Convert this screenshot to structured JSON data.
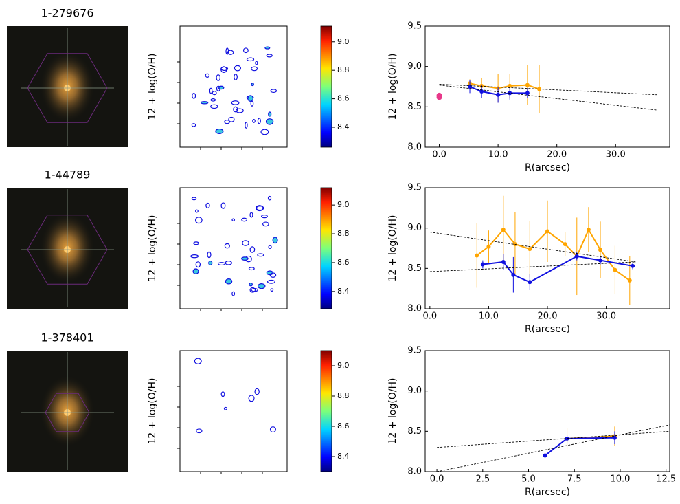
{
  "chart_data": [
    {
      "type": "map",
      "title": "1-279676",
      "ylabel": "12 + log(O/H)",
      "clim": [
        8.26,
        9.11
      ],
      "cticks": [
        8.4,
        8.6,
        8.8,
        {
          "value": 9,
          "label": "9.0"
        }
      ]
    },
    {
      "type": "line",
      "xlabel": "R(arcsec)",
      "ylabel": "12 + log(O/H)",
      "xlim": [
        -2.4,
        39.2
      ],
      "ylim": [
        8.0,
        9.5
      ],
      "xticks": [
        {
          "value": 0,
          "label": "0.0"
        },
        {
          "value": 10,
          "label": "10.0"
        },
        {
          "value": 20,
          "label": "20.0"
        },
        {
          "value": 30,
          "label": "30.0"
        }
      ],
      "yticks": [
        {
          "value": 8,
          "label": "8.0"
        },
        8.5,
        {
          "value": 9,
          "label": "9.0"
        },
        9.5
      ],
      "series": [
        {
          "color": "#ffa500",
          "x": [
            5.2,
            7.2,
            10,
            12,
            15,
            17
          ],
          "values": [
            8.79,
            8.76,
            8.73,
            8.76,
            8.77,
            8.72
          ],
          "errors": [
            0.05,
            0.1,
            0.18,
            0.15,
            0.25,
            0.3
          ]
        },
        {
          "color": "#1010e0",
          "x": [
            5.2,
            7.2,
            10,
            12,
            15
          ],
          "values": [
            8.75,
            8.69,
            8.65,
            8.67,
            8.67
          ],
          "errors": [
            0.08,
            0.08,
            0.1,
            0.08,
            0.06
          ]
        },
        {
          "color": "#e8388a",
          "x": [
            0,
            0
          ],
          "values": [
            8.64,
            8.62
          ],
          "line": false
        },
        {
          "color": "#000000",
          "x": [
            0,
            37
          ],
          "values": [
            8.78,
            8.65
          ],
          "dash": true
        },
        {
          "color": "#000000",
          "x": [
            0,
            37
          ],
          "values": [
            8.77,
            8.46
          ],
          "dash": true
        }
      ]
    },
    {
      "type": "map",
      "title": "1-44789",
      "ylabel": "12 + log(O/H)",
      "clim": [
        8.28,
        9.12
      ],
      "cticks": [
        8.4,
        8.6,
        8.8,
        {
          "value": 9,
          "label": "9.0"
        }
      ]
    },
    {
      "type": "line",
      "xlabel": "R(arcsec)",
      "ylabel": "12 + log(O/H)",
      "xlim": [
        -0.8,
        40.8
      ],
      "ylim": [
        8.0,
        9.5
      ],
      "xticks": [
        {
          "value": 0,
          "label": "0.0"
        },
        {
          "value": 10,
          "label": "10.0"
        },
        {
          "value": 20,
          "label": "20.0"
        },
        {
          "value": 30,
          "label": "30.0"
        }
      ],
      "yticks": [
        {
          "value": 8,
          "label": "8.0"
        },
        8.5,
        {
          "value": 9,
          "label": "9.0"
        },
        9.5
      ],
      "series": [
        {
          "color": "#ffa500",
          "x": [
            8,
            10,
            12.5,
            14.5,
            17,
            20,
            23,
            25,
            27,
            29,
            31.5,
            34
          ],
          "values": [
            8.66,
            8.77,
            8.98,
            8.8,
            8.74,
            8.96,
            8.8,
            8.65,
            8.98,
            8.73,
            8.48,
            8.35
          ],
          "errors": [
            0.4,
            0.2,
            0.42,
            0.4,
            0.35,
            0.38,
            0.15,
            0.48,
            0.28,
            0.35,
            0.3,
            0.3
          ]
        },
        {
          "color": "#1010e0",
          "x": [
            9,
            12.5,
            14.2,
            17,
            25,
            29,
            34.5
          ],
          "values": [
            8.55,
            8.58,
            8.42,
            8.33,
            8.65,
            8.6,
            8.53
          ],
          "errors": [
            0.05,
            0.1,
            0.22,
            0.1,
            0.05,
            0.05,
            0.04
          ]
        },
        {
          "color": "#000000",
          "x": [
            0,
            35
          ],
          "values": [
            8.95,
            8.58
          ],
          "dash": true
        },
        {
          "color": "#000000",
          "x": [
            0,
            35
          ],
          "values": [
            8.46,
            8.58
          ],
          "dash": true
        }
      ]
    },
    {
      "type": "map",
      "title": "1-378401",
      "ylabel": "12 + log(O/H)",
      "clim": [
        8.3,
        9.1
      ],
      "cticks": [
        8.4,
        8.6,
        8.8,
        {
          "value": 9,
          "label": "9.0"
        }
      ]
    },
    {
      "type": "line",
      "xlabel": "R(arcsec)",
      "ylabel": "12 + log(O/H)",
      "xlim": [
        -0.64,
        12.7
      ],
      "ylim": [
        8.0,
        9.5
      ],
      "xticks": [
        {
          "value": 0,
          "label": "0.0"
        },
        2.5,
        {
          "value": 5,
          "label": "5.0"
        },
        7.5,
        {
          "value": 10,
          "label": "10.0"
        },
        12.5
      ],
      "yticks": [
        {
          "value": 8,
          "label": "8.0"
        },
        8.5,
        {
          "value": 9,
          "label": "9.0"
        },
        9.5
      ],
      "series": [
        {
          "color": "#ffa500",
          "x": [
            7.1,
            9.7
          ],
          "values": [
            8.41,
            8.44
          ],
          "errors": [
            0.13,
            0.12
          ]
        },
        {
          "color": "#1010e0",
          "x": [
            5.9,
            7.1,
            9.7
          ],
          "values": [
            8.2,
            8.41,
            8.42
          ],
          "errors": [
            0.02,
            0.05,
            0.08
          ]
        },
        {
          "color": "#000000",
          "x": [
            0,
            12.7
          ],
          "values": [
            8.3,
            8.5
          ],
          "dash": true
        },
        {
          "color": "#000000",
          "x": [
            0,
            12.7
          ],
          "values": [
            8.0,
            8.58
          ],
          "dash": true
        }
      ]
    }
  ]
}
